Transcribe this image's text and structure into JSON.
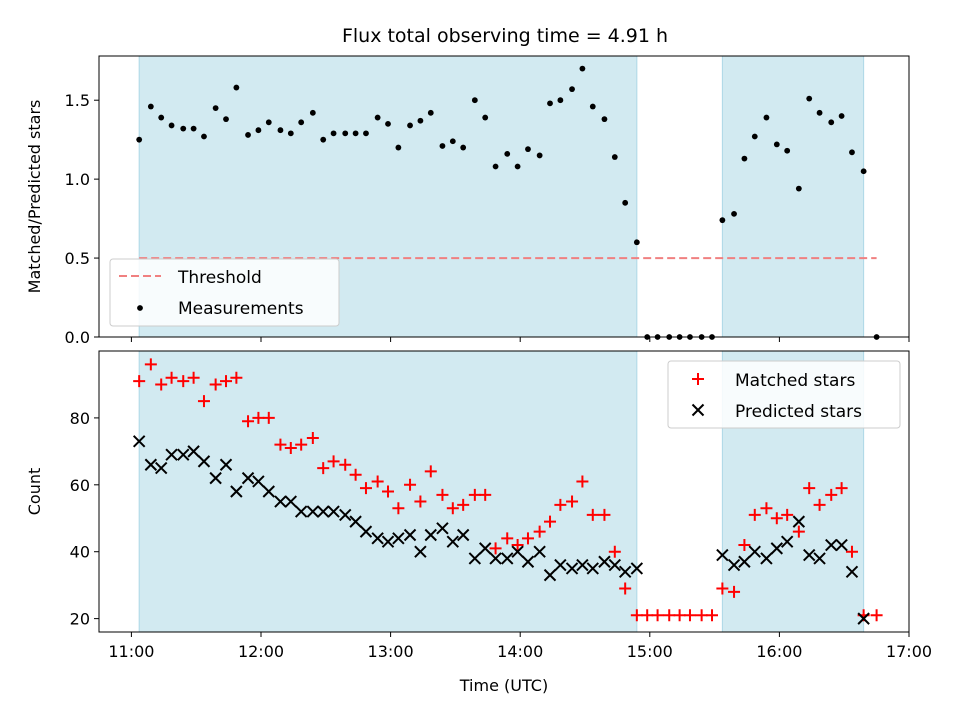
{
  "chart_data": [
    {
      "type": "scatter",
      "title": "Flux total observing time = 4.91 h",
      "xlabel": "",
      "ylabel": "Matched/Predicted stars",
      "xlim": [
        10.75,
        17.0
      ],
      "ylim": [
        0.0,
        1.78
      ],
      "yticks": [
        0.0,
        0.5,
        1.0,
        1.5
      ],
      "ytick_labels": [
        "0.0",
        "0.5",
        "1.0",
        "1.5"
      ],
      "shaded_spans": [
        [
          11.06,
          14.9
        ],
        [
          15.56,
          16.65
        ]
      ],
      "shade_color": "#add8e6",
      "threshold": {
        "name": "Threshold",
        "value": 0.5,
        "x_range": [
          11.06,
          16.75
        ],
        "color": "#f08080"
      },
      "legend": {
        "position": "lower-left",
        "entries": [
          "Threshold",
          "Measurements"
        ]
      },
      "series": [
        {
          "name": "Measurements",
          "color": "#000000",
          "marker": "dot",
          "x": [
            11.06,
            11.15,
            11.23,
            11.31,
            11.4,
            11.48,
            11.56,
            11.65,
            11.73,
            11.81,
            11.9,
            11.98,
            12.06,
            12.15,
            12.23,
            12.31,
            12.4,
            12.48,
            12.56,
            12.65,
            12.73,
            12.81,
            12.9,
            12.98,
            13.06,
            13.15,
            13.23,
            13.31,
            13.4,
            13.48,
            13.56,
            13.65,
            13.73,
            13.81,
            13.9,
            13.98,
            14.06,
            14.15,
            14.23,
            14.31,
            14.4,
            14.48,
            14.56,
            14.65,
            14.73,
            14.81,
            14.9,
            14.98,
            15.06,
            15.15,
            15.23,
            15.31,
            15.4,
            15.48,
            15.56,
            15.65,
            15.73,
            15.81,
            15.9,
            15.98,
            16.06,
            16.15,
            16.23,
            16.31,
            16.4,
            16.48,
            16.56,
            16.65,
            16.75
          ],
          "y": [
            1.25,
            1.46,
            1.39,
            1.34,
            1.32,
            1.32,
            1.27,
            1.45,
            1.38,
            1.58,
            1.28,
            1.31,
            1.36,
            1.31,
            1.29,
            1.36,
            1.42,
            1.25,
            1.29,
            1.29,
            1.29,
            1.29,
            1.39,
            1.35,
            1.2,
            1.34,
            1.37,
            1.42,
            1.21,
            1.24,
            1.2,
            1.5,
            1.39,
            1.08,
            1.16,
            1.08,
            1.19,
            1.15,
            1.48,
            1.5,
            1.57,
            1.7,
            1.46,
            1.38,
            1.14,
            0.85,
            0.6,
            0.0,
            0.0,
            0.0,
            0.0,
            0.0,
            0.0,
            0.0,
            0.74,
            0.78,
            1.13,
            1.27,
            1.39,
            1.22,
            1.18,
            0.94,
            1.51,
            1.42,
            1.36,
            1.4,
            1.17,
            1.05,
            0.0
          ]
        }
      ]
    },
    {
      "type": "scatter",
      "title": "",
      "xlabel": "Time (UTC)",
      "ylabel": "Count",
      "xlim": [
        10.75,
        17.0
      ],
      "ylim": [
        16,
        100
      ],
      "yticks": [
        20,
        40,
        60,
        80
      ],
      "ytick_labels": [
        "20",
        "40",
        "60",
        "80"
      ],
      "xticks": [
        11,
        12,
        13,
        14,
        15,
        16,
        17
      ],
      "xtick_labels": [
        "11:00",
        "12:00",
        "13:00",
        "14:00",
        "15:00",
        "16:00",
        "17:00"
      ],
      "shaded_spans": [
        [
          11.06,
          14.9
        ],
        [
          15.56,
          16.65
        ]
      ],
      "shade_color": "#add8e6",
      "legend": {
        "position": "top-right",
        "entries": [
          "Matched stars",
          "Predicted stars"
        ]
      },
      "series": [
        {
          "name": "Matched stars",
          "color": "#ff0000",
          "marker": "plus",
          "x": [
            11.06,
            11.15,
            11.23,
            11.31,
            11.4,
            11.48,
            11.56,
            11.65,
            11.73,
            11.81,
            11.9,
            11.98,
            12.06,
            12.15,
            12.23,
            12.31,
            12.4,
            12.48,
            12.56,
            12.65,
            12.73,
            12.81,
            12.9,
            12.98,
            13.06,
            13.15,
            13.23,
            13.31,
            13.4,
            13.48,
            13.56,
            13.65,
            13.73,
            13.81,
            13.9,
            13.98,
            14.06,
            14.15,
            14.23,
            14.31,
            14.4,
            14.48,
            14.56,
            14.65,
            14.73,
            14.81,
            14.9,
            14.98,
            15.06,
            15.15,
            15.23,
            15.31,
            15.4,
            15.48,
            15.56,
            15.65,
            15.73,
            15.81,
            15.9,
            15.98,
            16.06,
            16.15,
            16.23,
            16.31,
            16.4,
            16.48,
            16.56,
            16.65,
            16.75
          ],
          "y": [
            91,
            96,
            90,
            92,
            91,
            92,
            85,
            90,
            91,
            92,
            79,
            80,
            80,
            72,
            71,
            72,
            74,
            65,
            67,
            66,
            63,
            59,
            61,
            58,
            53,
            60,
            55,
            64,
            57,
            53,
            54,
            57,
            57,
            41,
            44,
            42,
            44,
            46,
            49,
            54,
            55,
            61,
            51,
            51,
            40,
            29,
            21,
            21,
            21,
            21,
            21,
            21,
            21,
            21,
            29,
            28,
            42,
            51,
            53,
            50,
            51,
            46,
            59,
            54,
            57,
            59,
            40,
            21,
            21
          ]
        },
        {
          "name": "Predicted stars",
          "color": "#000000",
          "marker": "x",
          "x": [
            11.06,
            11.15,
            11.23,
            11.31,
            11.4,
            11.48,
            11.56,
            11.65,
            11.73,
            11.81,
            11.9,
            11.98,
            12.06,
            12.15,
            12.23,
            12.31,
            12.4,
            12.48,
            12.56,
            12.65,
            12.73,
            12.81,
            12.9,
            12.98,
            13.06,
            13.15,
            13.23,
            13.31,
            13.4,
            13.48,
            13.56,
            13.65,
            13.73,
            13.81,
            13.9,
            13.98,
            14.06,
            14.15,
            14.23,
            14.31,
            14.4,
            14.48,
            14.56,
            14.65,
            14.73,
            14.81,
            14.9,
            15.56,
            15.65,
            15.73,
            15.81,
            15.9,
            15.98,
            16.06,
            16.15,
            16.23,
            16.31,
            16.4,
            16.48,
            16.56,
            16.65
          ],
          "y": [
            73,
            66,
            65,
            69,
            69,
            70,
            67,
            62,
            66,
            58,
            62,
            61,
            58,
            55,
            55,
            52,
            52,
            52,
            52,
            51,
            49,
            46,
            44,
            43,
            44,
            45,
            40,
            45,
            47,
            43,
            45,
            38,
            41,
            38,
            38,
            40,
            37,
            40,
            33,
            36,
            35,
            36,
            35,
            37,
            36,
            34,
            35,
            39,
            36,
            37,
            40,
            38,
            41,
            43,
            49,
            39,
            38,
            42,
            42,
            34,
            20
          ]
        }
      ]
    }
  ]
}
